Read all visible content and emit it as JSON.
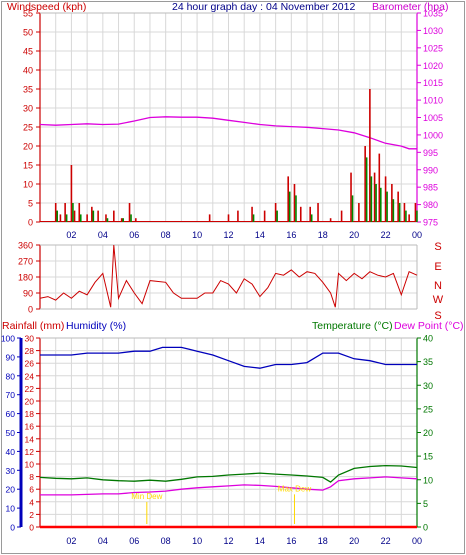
{
  "header": {
    "left_label": "Windspeed (kph)",
    "title": "24 hour graph day : 04 November 2012",
    "right_label": "Barometer (hpa)"
  },
  "bottom_header": {
    "rainfall_label": "Rainfall (mm)",
    "humidity_label": "Humidity (%)",
    "temperature_label": "Temperature (°C)",
    "dewpoint_label": "Dew Point (°C)"
  },
  "colors": {
    "frame_red": "#cc0000",
    "barometer": "#dd00dd",
    "wind_gust": "#cc0000",
    "wind_avg": "#008800",
    "wind_dir": "#cc0000",
    "humidity": "#0000bb",
    "temperature": "#007700",
    "dewpoint": "#dd00dd",
    "rainfall": "#ff0000",
    "grid": "#d8d8d8",
    "annotation": "#ffd800"
  },
  "chart_data": [
    {
      "type": "bar",
      "name": "wind",
      "x_ticks": [
        "02",
        "04",
        "06",
        "08",
        "10",
        "12",
        "14",
        "16",
        "18",
        "20",
        "22",
        "00"
      ],
      "y_left_ticks": [
        "0",
        "5",
        "10",
        "15",
        "20",
        "25",
        "30",
        "35",
        "40",
        "45",
        "50",
        "55"
      ],
      "y_left_range": [
        0,
        55
      ],
      "y_right_ticks": [
        "975",
        "980",
        "985",
        "990",
        "995",
        "1000",
        "1005",
        "1010",
        "1015",
        "1020",
        "1025",
        "1030",
        "1035"
      ],
      "y_right_range": [
        975,
        1035
      ],
      "grid": true,
      "wind_gust": [
        [
          1,
          5
        ],
        [
          1.3,
          2
        ],
        [
          1.6,
          5
        ],
        [
          2.0,
          15
        ],
        [
          2.2,
          3
        ],
        [
          2.5,
          5
        ],
        [
          3.0,
          2
        ],
        [
          3.3,
          4
        ],
        [
          3.7,
          3
        ],
        [
          4.2,
          2
        ],
        [
          4.7,
          3
        ],
        [
          5.2,
          1
        ],
        [
          5.7,
          5
        ],
        [
          6.1,
          1
        ],
        [
          10.8,
          2
        ],
        [
          12.0,
          2
        ],
        [
          12.6,
          3
        ],
        [
          13.5,
          4
        ],
        [
          14.3,
          3
        ],
        [
          15.0,
          5
        ],
        [
          15.8,
          12
        ],
        [
          16.2,
          10
        ],
        [
          16.6,
          4
        ],
        [
          17.2,
          4
        ],
        [
          17.7,
          5
        ],
        [
          18.5,
          1
        ],
        [
          19.2,
          3
        ],
        [
          19.8,
          13
        ],
        [
          20.3,
          5
        ],
        [
          20.7,
          20
        ],
        [
          21.0,
          35
        ],
        [
          21.3,
          13
        ],
        [
          21.6,
          18
        ],
        [
          22.0,
          12
        ],
        [
          22.4,
          10
        ],
        [
          22.8,
          8
        ],
        [
          23.2,
          5
        ],
        [
          23.5,
          2
        ],
        [
          23.9,
          5
        ]
      ],
      "wind_avg": [
        [
          1,
          3
        ],
        [
          1.6,
          2
        ],
        [
          2.0,
          5
        ],
        [
          2.5,
          2
        ],
        [
          3.3,
          3
        ],
        [
          4.2,
          1
        ],
        [
          5.2,
          1
        ],
        [
          5.7,
          2
        ],
        [
          13.5,
          2
        ],
        [
          15.0,
          3
        ],
        [
          15.8,
          8
        ],
        [
          16.2,
          7
        ],
        [
          17.2,
          2
        ],
        [
          19.8,
          7
        ],
        [
          20.7,
          17
        ],
        [
          21.0,
          12
        ],
        [
          21.3,
          10
        ],
        [
          21.6,
          9
        ],
        [
          22.0,
          8
        ],
        [
          22.4,
          6
        ],
        [
          22.8,
          5
        ],
        [
          23.2,
          3
        ],
        [
          23.9,
          3
        ]
      ],
      "barometer": [
        [
          0,
          1003.0
        ],
        [
          1,
          1002.8
        ],
        [
          2,
          1003.0
        ],
        [
          3,
          1003.2
        ],
        [
          4,
          1003.0
        ],
        [
          5,
          1003.1
        ],
        [
          6,
          1004.0
        ],
        [
          7,
          1005.0
        ],
        [
          8,
          1005.2
        ],
        [
          9,
          1005.1
        ],
        [
          10,
          1005.1
        ],
        [
          11,
          1004.8
        ],
        [
          12,
          1004.2
        ],
        [
          13,
          1003.6
        ],
        [
          14,
          1003.0
        ],
        [
          15,
          1002.6
        ],
        [
          16,
          1002.4
        ],
        [
          17,
          1002.2
        ],
        [
          18,
          1001.8
        ],
        [
          19,
          1001.4
        ],
        [
          20,
          1000.6
        ],
        [
          21,
          999.2
        ],
        [
          22,
          997.6
        ],
        [
          23,
          996.8
        ],
        [
          23.5,
          996.0
        ],
        [
          24,
          996.0
        ]
      ]
    },
    {
      "type": "line",
      "name": "wind_direction",
      "y_ticks": [
        "360",
        "270",
        "180",
        "90",
        "0"
      ],
      "y_range": [
        0,
        360
      ],
      "compass_labels": [
        "S",
        "E",
        "N",
        "W",
        "S"
      ],
      "x_range": [
        0,
        24
      ],
      "values": [
        [
          0,
          60
        ],
        [
          0.5,
          70
        ],
        [
          1,
          50
        ],
        [
          1.5,
          90
        ],
        [
          2,
          60
        ],
        [
          2.5,
          100
        ],
        [
          3,
          80
        ],
        [
          3.5,
          150
        ],
        [
          4,
          200
        ],
        [
          4.5,
          10
        ],
        [
          4.7,
          360
        ],
        [
          5,
          60
        ],
        [
          5.5,
          160
        ],
        [
          6,
          90
        ],
        [
          6.5,
          30
        ],
        [
          7,
          160
        ],
        [
          8,
          150
        ],
        [
          8.5,
          90
        ],
        [
          9,
          60
        ],
        [
          10,
          60
        ],
        [
          10.5,
          90
        ],
        [
          11,
          90
        ],
        [
          11.5,
          160
        ],
        [
          12,
          140
        ],
        [
          12.5,
          90
        ],
        [
          13,
          170
        ],
        [
          13.5,
          140
        ],
        [
          14,
          70
        ],
        [
          14.5,
          120
        ],
        [
          15,
          200
        ],
        [
          15.5,
          190
        ],
        [
          16,
          220
        ],
        [
          16.5,
          180
        ],
        [
          17,
          210
        ],
        [
          17.5,
          200
        ],
        [
          18,
          150
        ],
        [
          18.5,
          90
        ],
        [
          18.8,
          10
        ],
        [
          19,
          200
        ],
        [
          19.5,
          160
        ],
        [
          20,
          200
        ],
        [
          20.5,
          170
        ],
        [
          21,
          210
        ],
        [
          21.5,
          190
        ],
        [
          22,
          180
        ],
        [
          22.5,
          200
        ],
        [
          23,
          80
        ],
        [
          23.5,
          210
        ],
        [
          24,
          190
        ]
      ]
    },
    {
      "type": "line",
      "name": "humidity_temperature",
      "x_ticks": [
        "02",
        "04",
        "06",
        "08",
        "10",
        "12",
        "14",
        "16",
        "18",
        "20",
        "22",
        "00"
      ],
      "rainfall_ticks": [
        "0",
        "2",
        "4",
        "6",
        "8",
        "10",
        "12",
        "14",
        "16",
        "18",
        "20",
        "22",
        "24",
        "26",
        "28",
        "30"
      ],
      "humidity_ticks": [
        "0",
        "10",
        "20",
        "30",
        "40",
        "50",
        "60",
        "70",
        "80",
        "90",
        "100"
      ],
      "humidity_range": [
        0,
        100
      ],
      "temperature_ticks": [
        "0",
        "5",
        "10",
        "15",
        "20",
        "25",
        "30",
        "35",
        "40"
      ],
      "temperature_range": [
        0,
        40
      ],
      "annotations": [
        "Min Dew",
        "Max Dew"
      ],
      "humidity": [
        [
          0,
          91
        ],
        [
          2,
          91
        ],
        [
          3,
          92
        ],
        [
          4,
          92
        ],
        [
          5,
          92
        ],
        [
          6,
          93
        ],
        [
          7,
          93
        ],
        [
          7.8,
          95
        ],
        [
          9,
          95
        ],
        [
          9.5,
          94
        ],
        [
          10,
          93
        ],
        [
          11,
          91
        ],
        [
          12,
          88
        ],
        [
          13,
          85
        ],
        [
          14,
          84
        ],
        [
          15,
          86
        ],
        [
          16,
          86
        ],
        [
          17,
          87
        ],
        [
          18,
          92
        ],
        [
          19,
          92
        ],
        [
          20,
          89
        ],
        [
          21,
          88
        ],
        [
          22,
          86
        ],
        [
          23,
          86
        ],
        [
          24,
          86
        ]
      ],
      "temperature": [
        [
          0,
          10.5
        ],
        [
          1,
          10.3
        ],
        [
          2,
          10.2
        ],
        [
          3,
          10.4
        ],
        [
          4,
          10.0
        ],
        [
          5,
          9.8
        ],
        [
          6,
          9.7
        ],
        [
          7,
          9.9
        ],
        [
          8,
          9.7
        ],
        [
          9,
          10.1
        ],
        [
          10,
          10.6
        ],
        [
          11,
          10.7
        ],
        [
          12,
          11.0
        ],
        [
          13,
          11.2
        ],
        [
          14,
          11.4
        ],
        [
          15,
          11.2
        ],
        [
          16,
          11.0
        ],
        [
          17,
          10.8
        ],
        [
          18,
          10.5
        ],
        [
          18.5,
          9.5
        ],
        [
          19,
          11.0
        ],
        [
          20,
          12.4
        ],
        [
          21,
          12.8
        ],
        [
          22,
          13.0
        ],
        [
          23,
          12.9
        ],
        [
          24,
          12.6
        ]
      ],
      "dew_point": [
        [
          0,
          6.8
        ],
        [
          2,
          6.8
        ],
        [
          3,
          6.9
        ],
        [
          4,
          7.0
        ],
        [
          5,
          7.0
        ],
        [
          6,
          7.3
        ],
        [
          7,
          7.4
        ],
        [
          8,
          7.6
        ],
        [
          9,
          8.0
        ],
        [
          10,
          8.3
        ],
        [
          11,
          8.5
        ],
        [
          12,
          8.7
        ],
        [
          13,
          8.9
        ],
        [
          14,
          8.8
        ],
        [
          15,
          8.6
        ],
        [
          16,
          8.3
        ],
        [
          17,
          8.0
        ],
        [
          18,
          7.8
        ],
        [
          18.5,
          8.5
        ],
        [
          19,
          9.8
        ],
        [
          20,
          10.2
        ],
        [
          21,
          10.4
        ],
        [
          22,
          10.6
        ],
        [
          23,
          10.4
        ],
        [
          24,
          10.2
        ]
      ],
      "rainfall": [
        [
          0,
          0
        ],
        [
          24,
          0
        ]
      ]
    }
  ]
}
